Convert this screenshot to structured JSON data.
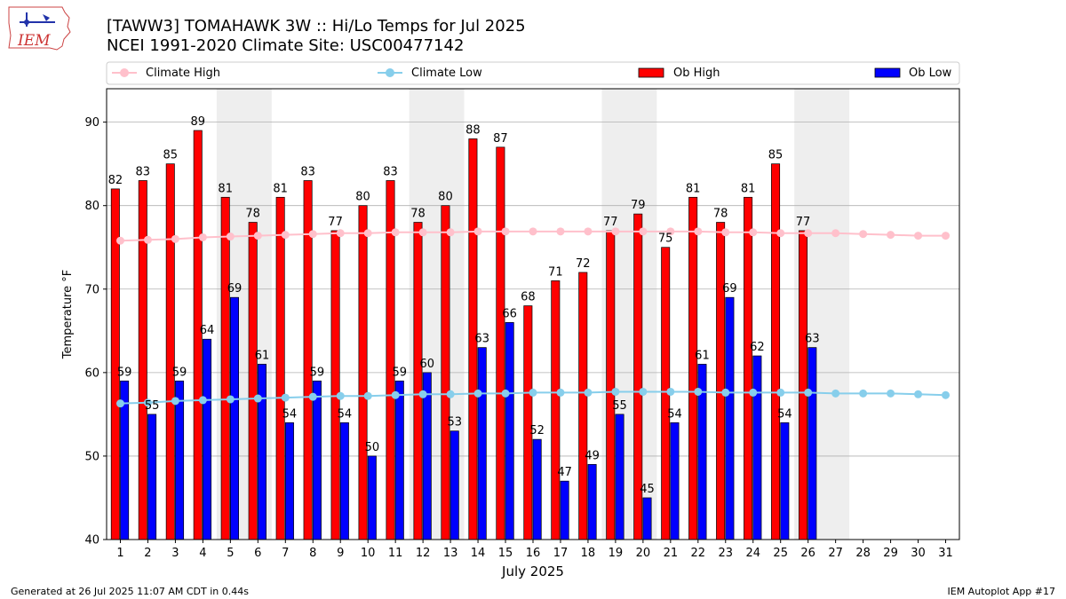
{
  "logo": {
    "text": "IEM"
  },
  "footer": {
    "generated": "Generated at 26 Jul 2025 11:07 AM CDT in 0.44s",
    "app": "IEM Autoplot App #17"
  },
  "colors": {
    "climate_high": "#ffc0cb",
    "climate_low": "#87ceeb",
    "ob_high": "#ff0000",
    "ob_low": "#0000ff",
    "weekend_band": "#eeeeee",
    "grid": "#b0b0b0"
  },
  "chart_data": {
    "type": "bar",
    "title": "[TAWW3] TOMAHAWK 3W :: Hi/Lo Temps for Jul 2025",
    "subtitle": "NCEI 1991-2020 Climate Site: USC00477142",
    "xlabel": "July 2025",
    "ylabel": "Temperature °F",
    "ylim": [
      40,
      94
    ],
    "yticks": [
      40,
      50,
      60,
      70,
      80,
      90
    ],
    "grid": true,
    "legend_position": "top",
    "categories": [
      "1",
      "2",
      "3",
      "4",
      "5",
      "6",
      "7",
      "8",
      "9",
      "10",
      "11",
      "12",
      "13",
      "14",
      "15",
      "16",
      "17",
      "18",
      "19",
      "20",
      "21",
      "22",
      "23",
      "24",
      "25",
      "26",
      "27",
      "28",
      "29",
      "30",
      "31"
    ],
    "weekend_shading_days": [
      [
        5,
        6
      ],
      [
        12,
        13
      ],
      [
        19,
        20
      ],
      [
        26,
        27
      ]
    ],
    "series": [
      {
        "name": "Climate High",
        "kind": "line",
        "values": [
          75.8,
          75.9,
          76.0,
          76.2,
          76.3,
          76.4,
          76.5,
          76.6,
          76.7,
          76.7,
          76.8,
          76.8,
          76.8,
          76.9,
          76.9,
          76.9,
          76.9,
          76.9,
          76.9,
          76.9,
          76.9,
          76.9,
          76.8,
          76.8,
          76.7,
          76.7,
          76.7,
          76.6,
          76.5,
          76.4,
          76.4
        ]
      },
      {
        "name": "Climate Low",
        "kind": "line",
        "values": [
          56.3,
          56.4,
          56.6,
          56.7,
          56.8,
          56.9,
          57.0,
          57.1,
          57.2,
          57.2,
          57.3,
          57.4,
          57.4,
          57.5,
          57.5,
          57.6,
          57.6,
          57.6,
          57.7,
          57.7,
          57.7,
          57.7,
          57.6,
          57.6,
          57.6,
          57.6,
          57.5,
          57.5,
          57.5,
          57.4,
          57.3
        ]
      },
      {
        "name": "Ob High",
        "kind": "bar",
        "values": [
          82,
          83,
          85,
          89,
          81,
          78,
          81,
          83,
          77,
          80,
          83,
          78,
          80,
          88,
          87,
          68,
          71,
          72,
          77,
          79,
          75,
          81,
          78,
          81,
          85,
          77,
          null,
          null,
          null,
          null,
          null
        ]
      },
      {
        "name": "Ob Low",
        "kind": "bar",
        "values": [
          59,
          55,
          59,
          64,
          69,
          61,
          54,
          59,
          54,
          50,
          59,
          60,
          53,
          63,
          66,
          52,
          47,
          49,
          55,
          45,
          54,
          61,
          69,
          62,
          54,
          63,
          null,
          null,
          null,
          null,
          null
        ]
      }
    ]
  }
}
